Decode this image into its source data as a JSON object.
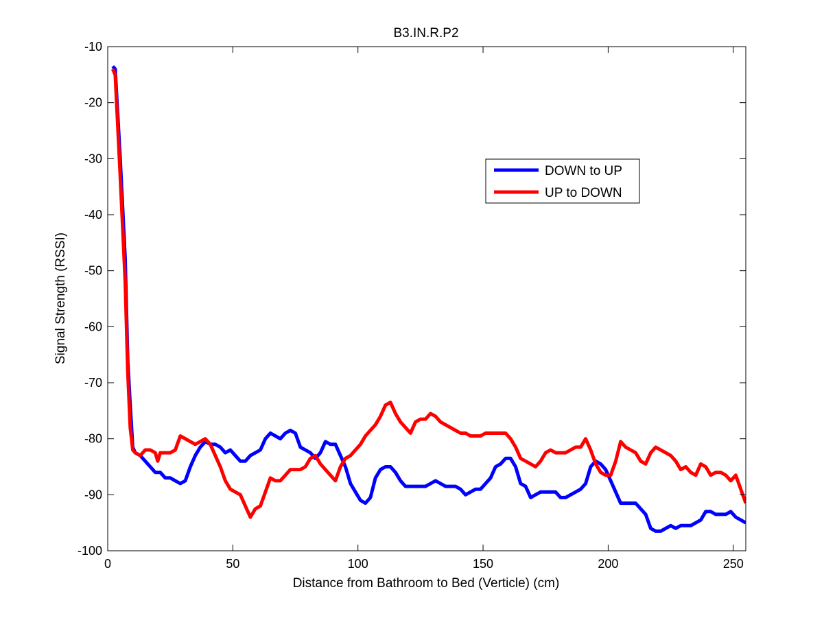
{
  "chart_data": {
    "type": "line",
    "title": "B3.IN.R.P2",
    "xlabel": "Distance from Bathroom to Bed (Verticle)  (cm)",
    "ylabel": "Signal Strength (RSSI)",
    "xlim": [
      0,
      255
    ],
    "ylim": [
      -100,
      -10
    ],
    "xticks": [
      0,
      50,
      100,
      150,
      200,
      250
    ],
    "yticks": [
      -100,
      -90,
      -80,
      -70,
      -60,
      -50,
      -40,
      -30,
      -20,
      -10
    ],
    "grid": false,
    "legend_position": "upper-right inside",
    "series": [
      {
        "name": "DOWN to UP",
        "color": "#0000ff",
        "x": [
          2,
          3,
          5,
          7,
          8,
          9,
          10,
          11,
          13,
          15,
          17,
          19,
          21,
          23,
          25,
          27,
          29,
          31,
          33,
          35,
          37,
          39,
          41,
          43,
          45,
          47,
          49,
          51,
          53,
          55,
          57,
          59,
          61,
          63,
          65,
          67,
          69,
          71,
          73,
          75,
          77,
          79,
          81,
          83,
          85,
          87,
          89,
          91,
          93,
          95,
          97,
          99,
          101,
          103,
          105,
          107,
          109,
          111,
          113,
          115,
          117,
          119,
          121,
          123,
          125,
          127,
          129,
          131,
          133,
          135,
          137,
          139,
          141,
          143,
          145,
          147,
          149,
          151,
          153,
          155,
          157,
          159,
          161,
          163,
          165,
          167,
          169,
          171,
          173,
          175,
          177,
          179,
          181,
          183,
          185,
          187,
          189,
          191,
          193,
          195,
          197,
          199,
          201,
          203,
          205,
          207,
          209,
          211,
          213,
          215,
          217,
          219,
          221,
          223,
          225,
          227,
          229,
          231,
          233,
          235,
          237,
          239,
          241,
          243,
          245,
          247,
          249,
          251,
          253,
          255
        ],
        "y": [
          -13.5,
          -14,
          -30,
          -48,
          -66,
          -74,
          -81.5,
          -82.5,
          -83,
          -84,
          -85,
          -86,
          -86,
          -87,
          -87,
          -87.5,
          -88,
          -87.5,
          -85,
          -83,
          -81.5,
          -80.5,
          -81,
          -81,
          -81.5,
          -82.5,
          -82,
          -83,
          -84,
          -84,
          -83,
          -82.5,
          -82,
          -80,
          -79,
          -79.5,
          -80,
          -79,
          -78.5,
          -79,
          -81.5,
          -82,
          -82.5,
          -83.5,
          -82.5,
          -80.5,
          -81,
          -81,
          -83,
          -85,
          -88,
          -89.5,
          -91,
          -91.5,
          -90.5,
          -87,
          -85.5,
          -85,
          -85,
          -86,
          -87.5,
          -88.5,
          -88.5,
          -88.5,
          -88.5,
          -88.5,
          -88,
          -87.5,
          -88,
          -88.5,
          -88.5,
          -88.5,
          -89,
          -90,
          -89.5,
          -89,
          -89,
          -88,
          -87,
          -85,
          -84.5,
          -83.5,
          -83.5,
          -85,
          -88,
          -88.5,
          -90.5,
          -90,
          -89.5,
          -89.5,
          -89.5,
          -89.5,
          -90.5,
          -90.5,
          -90,
          -89.5,
          -89,
          -88,
          -85,
          -84,
          -84.5,
          -85.5,
          -87.5,
          -89.5,
          -91.5,
          -91.5,
          -91.5,
          -91.5,
          -92.5,
          -93.5,
          -96,
          -96.5,
          -96.5,
          -96,
          -95.5,
          -96,
          -95.5,
          -95.5,
          -95.5,
          -95,
          -94.5,
          -93,
          -93,
          -93.5,
          -93.5,
          -93.5,
          -93,
          -94,
          -94.5,
          -95
        ]
      },
      {
        "name": "UP to DOWN",
        "color": "#ff0000",
        "x": [
          2,
          3,
          5,
          7,
          8,
          9,
          10,
          11,
          13,
          15,
          17,
          19,
          20,
          21,
          23,
          25,
          27,
          29,
          31,
          33,
          35,
          37,
          39,
          41,
          43,
          45,
          47,
          49,
          51,
          53,
          55,
          57,
          59,
          61,
          63,
          65,
          67,
          69,
          71,
          73,
          75,
          77,
          79,
          81,
          83,
          85,
          87,
          89,
          91,
          93,
          95,
          97,
          99,
          101,
          103,
          105,
          107,
          109,
          111,
          113,
          115,
          117,
          119,
          121,
          123,
          125,
          127,
          129,
          131,
          133,
          135,
          137,
          139,
          141,
          143,
          145,
          147,
          149,
          151,
          153,
          155,
          157,
          159,
          161,
          163,
          165,
          167,
          169,
          171,
          173,
          175,
          177,
          179,
          181,
          183,
          185,
          187,
          189,
          191,
          193,
          195,
          197,
          199,
          201,
          203,
          205,
          207,
          209,
          211,
          213,
          215,
          217,
          219,
          221,
          223,
          225,
          227,
          229,
          231,
          233,
          235,
          237,
          239,
          241,
          243,
          245,
          247,
          249,
          251,
          253,
          255
        ],
        "y": [
          -14,
          -15,
          -33,
          -52,
          -68,
          -78,
          -82,
          -82.5,
          -83,
          -82,
          -82,
          -82.5,
          -84,
          -82.5,
          -82.5,
          -82.5,
          -82,
          -79.5,
          -80,
          -80.5,
          -81,
          -80.5,
          -80,
          -81,
          -83,
          -85,
          -87.5,
          -89,
          -89.5,
          -90,
          -92,
          -94,
          -92.5,
          -92,
          -89.5,
          -87,
          -87.5,
          -87.5,
          -86.5,
          -85.5,
          -85.5,
          -85.5,
          -85,
          -83.5,
          -83,
          -84.5,
          -85.5,
          -86.5,
          -87.5,
          -85,
          -83.5,
          -83,
          -82,
          -81,
          -79.5,
          -78.5,
          -77.5,
          -76,
          -74,
          -73.5,
          -75.5,
          -77,
          -78,
          -79,
          -77,
          -76.5,
          -76.5,
          -75.5,
          -76,
          -77,
          -77.5,
          -78,
          -78.5,
          -79,
          -79,
          -79.5,
          -79.5,
          -79.5,
          -79,
          -79,
          -79,
          -79,
          -79,
          -80,
          -81.5,
          -83.5,
          -84,
          -84.5,
          -85,
          -84,
          -82.5,
          -82,
          -82.5,
          -82.5,
          -82.5,
          -82,
          -81.5,
          -81.5,
          -80,
          -82,
          -84.5,
          -86,
          -86.5,
          -86.5,
          -84,
          -80.5,
          -81.5,
          -82,
          -82.5,
          -84,
          -84.5,
          -82.5,
          -81.5,
          -82,
          -82.5,
          -83,
          -84,
          -85.5,
          -85,
          -86,
          -86.5,
          -84.5,
          -85,
          -86.5,
          -86,
          -86,
          -86.5,
          -87.5,
          -86.5,
          -89,
          -91.5
        ]
      }
    ]
  }
}
